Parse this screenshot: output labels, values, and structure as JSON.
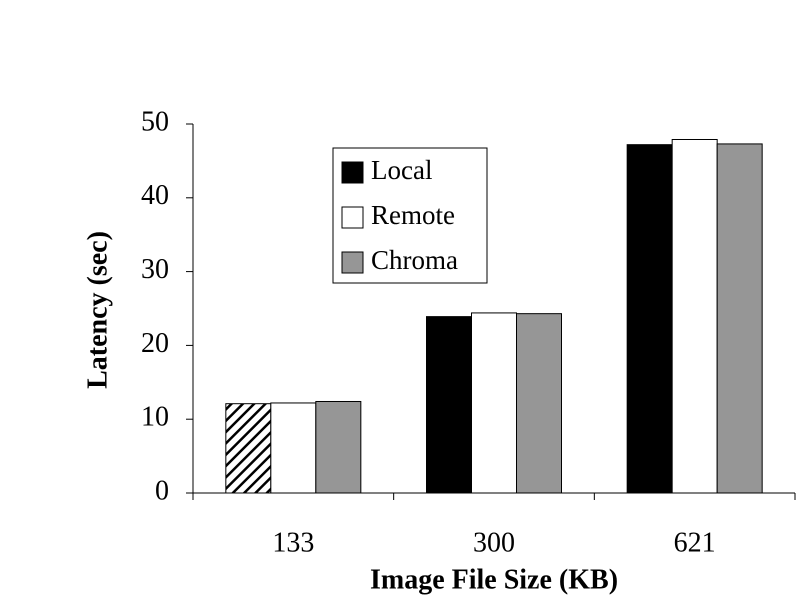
{
  "chart_data": {
    "type": "bar",
    "x_label": "Image File Size (KB)",
    "y_label": "Latency (sec)",
    "categories": [
      "133",
      "300",
      "621"
    ],
    "series": [
      {
        "name": "Local",
        "color": "#000000",
        "values": [
          12.1,
          23.9,
          47.2
        ],
        "hatched_points": [
          0
        ]
      },
      {
        "name": "Remote",
        "color": "#ffffff",
        "values": [
          12.2,
          24.4,
          47.9
        ]
      },
      {
        "name": "Chroma",
        "color": "#969696",
        "values": [
          12.4,
          24.3,
          47.3
        ]
      }
    ],
    "ylim": [
      0,
      50
    ],
    "yticks": [
      0,
      10,
      20,
      30,
      40,
      50
    ],
    "grid": false,
    "legend": "upper left"
  }
}
